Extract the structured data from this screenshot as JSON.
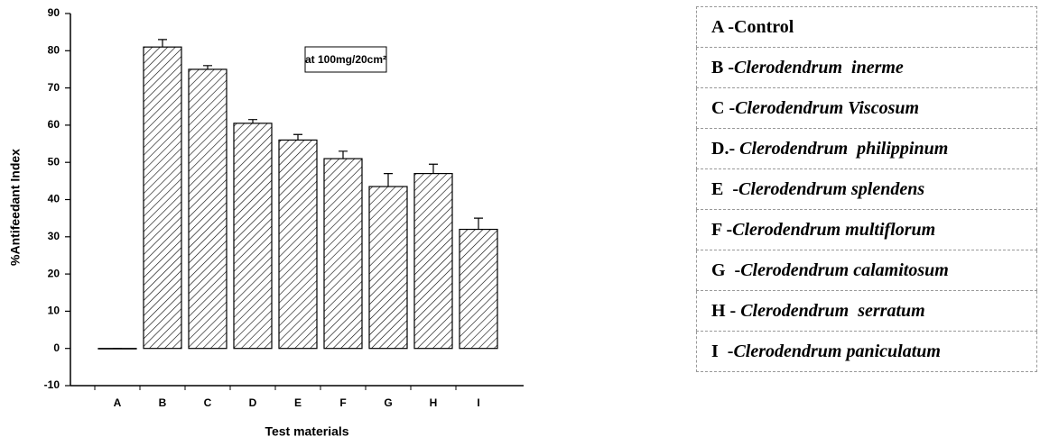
{
  "chart_data": {
    "type": "bar",
    "xlabel": "Test materials",
    "ylabel": "%Antifeedant Index",
    "annotation": "at 100mg/20cm²",
    "categories": [
      "A",
      "B",
      "C",
      "D",
      "E",
      "F",
      "G",
      "H",
      "I"
    ],
    "values": [
      0,
      81,
      75,
      60.5,
      56,
      51,
      43.5,
      47,
      32
    ],
    "errors": [
      0,
      2,
      1,
      1,
      1.5,
      2,
      3.5,
      2.5,
      3
    ],
    "color": "#000000",
    "ylim": [
      -10,
      90
    ],
    "yticks": [
      -10,
      0,
      10,
      20,
      30,
      40,
      50,
      60,
      70,
      80,
      90
    ],
    "key": [
      {
        "letter": "A -",
        "name": "Control"
      },
      {
        "letter": "B -",
        "name": "Clerodendrum  inerme"
      },
      {
        "letter": "C -",
        "name": "Clerodendrum Viscosum"
      },
      {
        "letter": "D.- ",
        "name": "Clerodendrum  philippinum"
      },
      {
        "letter": "E  -",
        "name": "Clerodendrum splendens"
      },
      {
        "letter": "F -",
        "name": "Clerodendrum multiflorum"
      },
      {
        "letter": "G  -",
        "name": "Clerodendrum calamitosum"
      },
      {
        "letter": "H - ",
        "name": "Clerodendrum  serratum"
      },
      {
        "letter": "I  -",
        "name": "Clerodendrum paniculatum"
      }
    ]
  }
}
